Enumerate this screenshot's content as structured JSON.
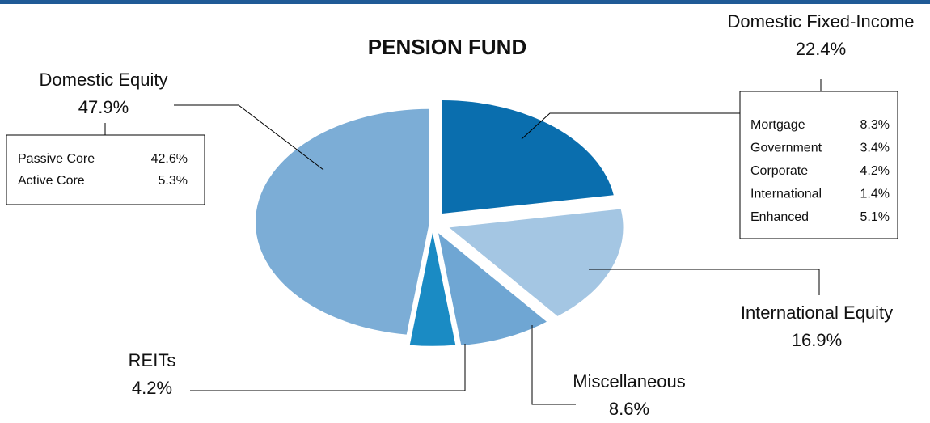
{
  "chart_data": {
    "type": "pie",
    "title": "PENSION FUND",
    "categories": [
      "Domestic Fixed-Income",
      "International Equity",
      "Miscellaneous",
      "REITs",
      "Domestic Equity"
    ],
    "values": [
      22.4,
      16.9,
      8.6,
      4.2,
      47.9
    ],
    "value_labels": [
      "22.4%",
      "16.9%",
      "8.6%",
      "4.2%",
      "47.9%"
    ],
    "colors": [
      "#0a6eae",
      "#a4c6e3",
      "#6fa6d3",
      "#1a8bc4",
      "#7cadd6"
    ],
    "details": [
      {
        "category": 4,
        "labels": [
          "Passive Core",
          "Active Core"
        ],
        "values": [
          42.6,
          5.3
        ],
        "value_labels": [
          "42.6%",
          "5.3%"
        ]
      },
      {
        "category": 0,
        "labels": [
          "Mortgage",
          "Government",
          "Corporate",
          "International",
          "Enhanced"
        ],
        "values": [
          8.3,
          3.4,
          4.2,
          1.4,
          5.1
        ],
        "value_labels": [
          "8.3%",
          "3.4%",
          "4.2%",
          "1.4%",
          "5.1%"
        ]
      }
    ]
  }
}
